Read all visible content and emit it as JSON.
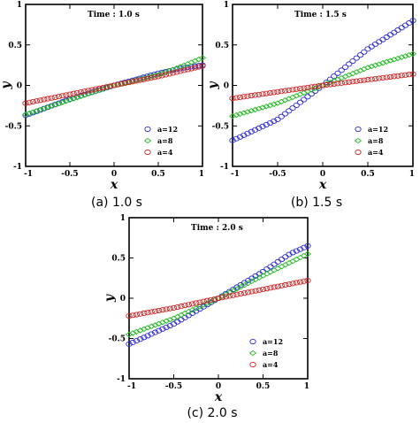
{
  "figure": {
    "captions": [
      "(a) 1.0 s",
      "(b) 1.5 s",
      "(c) 2.0 s"
    ]
  },
  "colors": {
    "a=12": "#2b2bd6",
    "a=8": "#22bb22",
    "a=4": "#cc2222",
    "axis": "#000000"
  },
  "chart_data": [
    {
      "type": "scatter",
      "title": "Time :  1.0 s",
      "xlabel": "x",
      "ylabel": "y",
      "xlim": [
        -1,
        1
      ],
      "ylim": [
        -1,
        1
      ],
      "xticks": [
        "-1",
        "-0.5",
        "0",
        "0.5",
        "1"
      ],
      "yticks": [
        "-1",
        "-0.5",
        "0",
        "0.5",
        "1"
      ],
      "grid": false,
      "legend_position": "bottom-right",
      "series": [
        {
          "name": "a=12",
          "marker": "circle",
          "x_range": [
            -1,
            1
          ],
          "n_points": 49,
          "profile": [
            [
              -1,
              -0.37
            ],
            [
              -0.5,
              -0.17
            ],
            [
              0,
              0.0
            ],
            [
              0.5,
              0.15
            ],
            [
              0.8,
              0.22
            ],
            [
              1,
              0.25
            ]
          ]
        },
        {
          "name": "a=8",
          "marker": "diamond",
          "x_range": [
            -1,
            1
          ],
          "n_points": 49,
          "profile": [
            [
              -1,
              -0.36
            ],
            [
              -0.5,
              -0.18
            ],
            [
              0,
              0.0
            ],
            [
              0.5,
              0.13
            ],
            [
              0.8,
              0.25
            ],
            [
              1,
              0.34
            ]
          ]
        },
        {
          "name": "a=4",
          "marker": "circle",
          "x_range": [
            -1,
            1
          ],
          "n_points": 49,
          "profile": [
            [
              -1,
              -0.22
            ],
            [
              -0.5,
              -0.11
            ],
            [
              0,
              0.0
            ],
            [
              0.5,
              0.11
            ],
            [
              1,
              0.24
            ]
          ]
        }
      ]
    },
    {
      "type": "scatter",
      "title": "Time :  1.5 s",
      "xlabel": "x",
      "ylabel": "y",
      "xlim": [
        -1,
        1
      ],
      "ylim": [
        -1,
        1
      ],
      "xticks": [
        "-1",
        "-0.5",
        "0",
        "0.5",
        "1"
      ],
      "yticks": [
        "-1",
        "-0.5",
        "0",
        "0.5",
        "1"
      ],
      "grid": false,
      "legend_position": "bottom-right",
      "series": [
        {
          "name": "a=12",
          "marker": "circle",
          "x_range": [
            -1,
            1
          ],
          "n_points": 49,
          "profile": [
            [
              -1,
              -0.68
            ],
            [
              -0.5,
              -0.42
            ],
            [
              0,
              0.0
            ],
            [
              0.5,
              0.45
            ],
            [
              1,
              0.8
            ]
          ]
        },
        {
          "name": "a=8",
          "marker": "diamond",
          "x_range": [
            -1,
            1
          ],
          "n_points": 49,
          "profile": [
            [
              -1,
              -0.38
            ],
            [
              -0.5,
              -0.22
            ],
            [
              0,
              0.0
            ],
            [
              0.5,
              0.22
            ],
            [
              1,
              0.39
            ]
          ]
        },
        {
          "name": "a=4",
          "marker": "circle",
          "x_range": [
            -1,
            1
          ],
          "n_points": 49,
          "profile": [
            [
              -1,
              -0.16
            ],
            [
              -0.5,
              -0.08
            ],
            [
              0,
              0.0
            ],
            [
              0.5,
              0.07
            ],
            [
              1,
              0.14
            ]
          ]
        }
      ]
    },
    {
      "type": "scatter",
      "title": "Time :  2.0 s",
      "xlabel": "x",
      "ylabel": "y",
      "xlim": [
        -1,
        1
      ],
      "ylim": [
        -1,
        1
      ],
      "xticks": [
        "-1",
        "-0.5",
        "0",
        "0.5",
        "1"
      ],
      "yticks": [
        "-1",
        "-0.5",
        "0",
        "0.5",
        "1"
      ],
      "grid": false,
      "legend_position": "bottom-right",
      "series": [
        {
          "name": "a=12",
          "marker": "circle",
          "x_range": [
            -1,
            1
          ],
          "n_points": 49,
          "profile": [
            [
              -1,
              -0.57
            ],
            [
              -0.5,
              -0.32
            ],
            [
              0,
              0.0
            ],
            [
              0.5,
              0.33
            ],
            [
              0.8,
              0.55
            ],
            [
              1,
              0.65
            ]
          ]
        },
        {
          "name": "a=8",
          "marker": "diamond",
          "x_range": [
            -1,
            1
          ],
          "n_points": 49,
          "profile": [
            [
              -1,
              -0.45
            ],
            [
              -0.5,
              -0.25
            ],
            [
              0,
              0.0
            ],
            [
              0.5,
              0.28
            ],
            [
              1,
              0.55
            ]
          ]
        },
        {
          "name": "a=4",
          "marker": "circle",
          "x_range": [
            -1,
            1
          ],
          "n_points": 49,
          "profile": [
            [
              -1,
              -0.22
            ],
            [
              -0.5,
              -0.12
            ],
            [
              0,
              0.0
            ],
            [
              0.5,
              0.11
            ],
            [
              1,
              0.22
            ]
          ]
        }
      ]
    }
  ]
}
